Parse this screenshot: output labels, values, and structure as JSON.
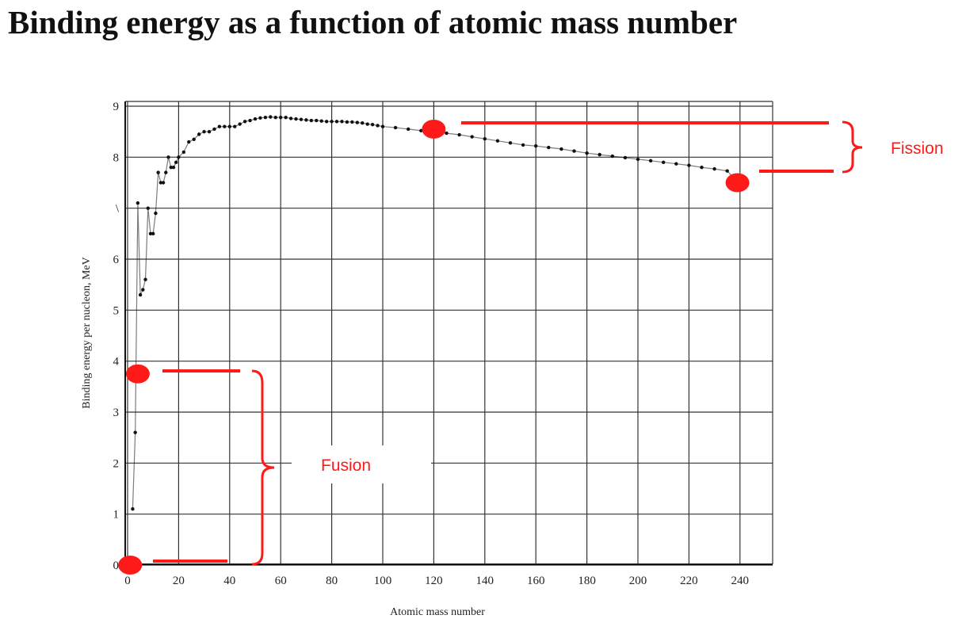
{
  "title": "Binding energy as a function of atomic mass number",
  "colors": {
    "accent": "#ff1a1a",
    "curve": "#111111",
    "grid": "#333333"
  },
  "chart_data": {
    "type": "scatter",
    "title": "Binding energy as a function of atomic mass number",
    "xlabel": "Atomic mass number",
    "ylabel": "Binding energy per nucleon, MeV",
    "xlim": [
      0,
      250
    ],
    "ylim": [
      0,
      9
    ],
    "x_ticks": [
      "0",
      "20",
      "40",
      "60",
      "80",
      "100",
      "120",
      "140",
      "160",
      "180",
      "200",
      "220",
      "240"
    ],
    "y_ticks": [
      "0",
      "1",
      "2",
      "3",
      "4",
      "5",
      "6",
      "\\",
      "8",
      "9"
    ],
    "grid": true,
    "series": [
      {
        "x": [
          2,
          3,
          4,
          5,
          6,
          7,
          8,
          9,
          10,
          11,
          12,
          13,
          14,
          15,
          16,
          17,
          18,
          19,
          20,
          22,
          24,
          26,
          28,
          30,
          32,
          34,
          36,
          38,
          40,
          42,
          44,
          46,
          48,
          50,
          52,
          54,
          56,
          58,
          60,
          62,
          64,
          66,
          68,
          70,
          72,
          74,
          76,
          78,
          80,
          82,
          84,
          86,
          88,
          90,
          92,
          94,
          96,
          98,
          100,
          105,
          110,
          115,
          120,
          125,
          130,
          135,
          140,
          145,
          150,
          155,
          160,
          165,
          170,
          175,
          180,
          185,
          190,
          195,
          200,
          205,
          210,
          215,
          220,
          225,
          230,
          235,
          238
        ],
        "values": [
          1.1,
          2.6,
          7.1,
          5.3,
          5.4,
          5.6,
          7.0,
          6.5,
          6.5,
          6.9,
          7.7,
          7.5,
          7.5,
          7.7,
          8.0,
          7.8,
          7.8,
          7.9,
          8.0,
          8.1,
          8.3,
          8.35,
          8.45,
          8.5,
          8.5,
          8.55,
          8.6,
          8.6,
          8.6,
          8.6,
          8.65,
          8.7,
          8.72,
          8.75,
          8.77,
          8.78,
          8.79,
          8.78,
          8.78,
          8.78,
          8.76,
          8.75,
          8.74,
          8.73,
          8.72,
          8.72,
          8.71,
          8.7,
          8.7,
          8.7,
          8.7,
          8.69,
          8.69,
          8.68,
          8.67,
          8.65,
          8.64,
          8.62,
          8.6,
          8.58,
          8.55,
          8.52,
          8.5,
          8.47,
          8.44,
          8.4,
          8.36,
          8.32,
          8.28,
          8.24,
          8.22,
          8.19,
          8.16,
          8.12,
          8.08,
          8.05,
          8.02,
          7.99,
          7.96,
          7.93,
          7.9,
          7.87,
          7.84,
          7.8,
          7.77,
          7.73,
          7.57
        ]
      }
    ],
    "annotations": [
      {
        "text": "Fusion",
        "color": "#ff1a1a"
      },
      {
        "text": "Fission",
        "color": "#ff1a1a"
      }
    ],
    "markers": [
      {
        "name": "fusion-start",
        "x": 1,
        "y": 0
      },
      {
        "name": "fusion-end",
        "x": 4,
        "y": 3.75
      },
      {
        "name": "fission-start",
        "x": 120,
        "y": 8.55
      },
      {
        "name": "fission-end",
        "x": 239,
        "y": 7.5
      }
    ]
  }
}
